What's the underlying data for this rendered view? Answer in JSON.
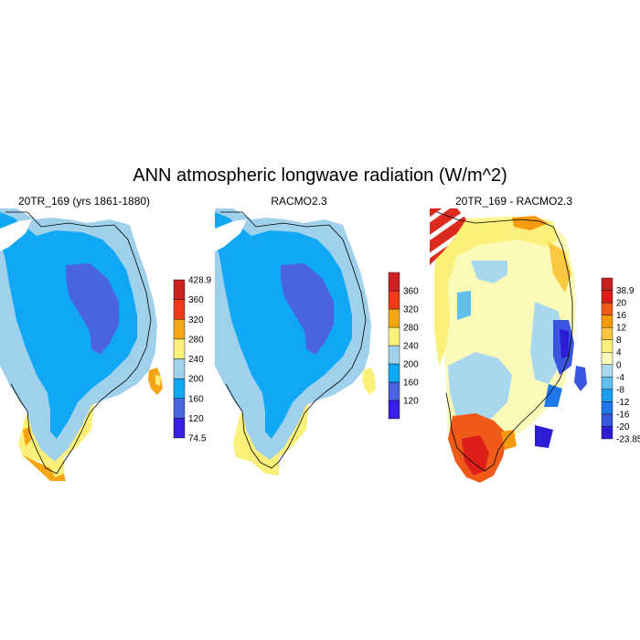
{
  "title": "ANN atmospheric longwave radiation (W/m^2)",
  "panels": [
    {
      "title": "20TR_169 (yrs 1861-1880)",
      "colorbar": {
        "colors": [
          "#3a1fe6",
          "#4a64e0",
          "#10a8f4",
          "#9fd0ec",
          "#fbf17a",
          "#f6a515",
          "#ef3b18",
          "#cc2222"
        ],
        "labels": [
          "74.5",
          "120",
          "160",
          "200",
          "240",
          "280",
          "320",
          "360",
          "428.9"
        ]
      }
    },
    {
      "title": "RACMO2.3",
      "colorbar": {
        "colors": [
          "#3a1fe6",
          "#4a64e0",
          "#10a8f4",
          "#9fd0ec",
          "#fbf17a",
          "#f6a515",
          "#ef3b18",
          "#cc2222"
        ],
        "labels": [
          "120",
          "160",
          "200",
          "240",
          "280",
          "320",
          "360"
        ]
      }
    },
    {
      "title": "20TR_169 - RACMO2.3",
      "colorbar": {
        "colors": [
          "#2c1cd6",
          "#3a55e0",
          "#1e78ea",
          "#1aa0f0",
          "#5fc0f0",
          "#a8d8ee",
          "#fbfab8",
          "#fbf17a",
          "#fbc840",
          "#f69a10",
          "#ef5a18",
          "#dd1e18",
          "#c42222"
        ],
        "labels": [
          "-23.85",
          "-20",
          "-16",
          "-12",
          "-8",
          "-4",
          "0",
          "4",
          "8",
          "12",
          "16",
          "20",
          "38.9"
        ]
      }
    }
  ]
}
